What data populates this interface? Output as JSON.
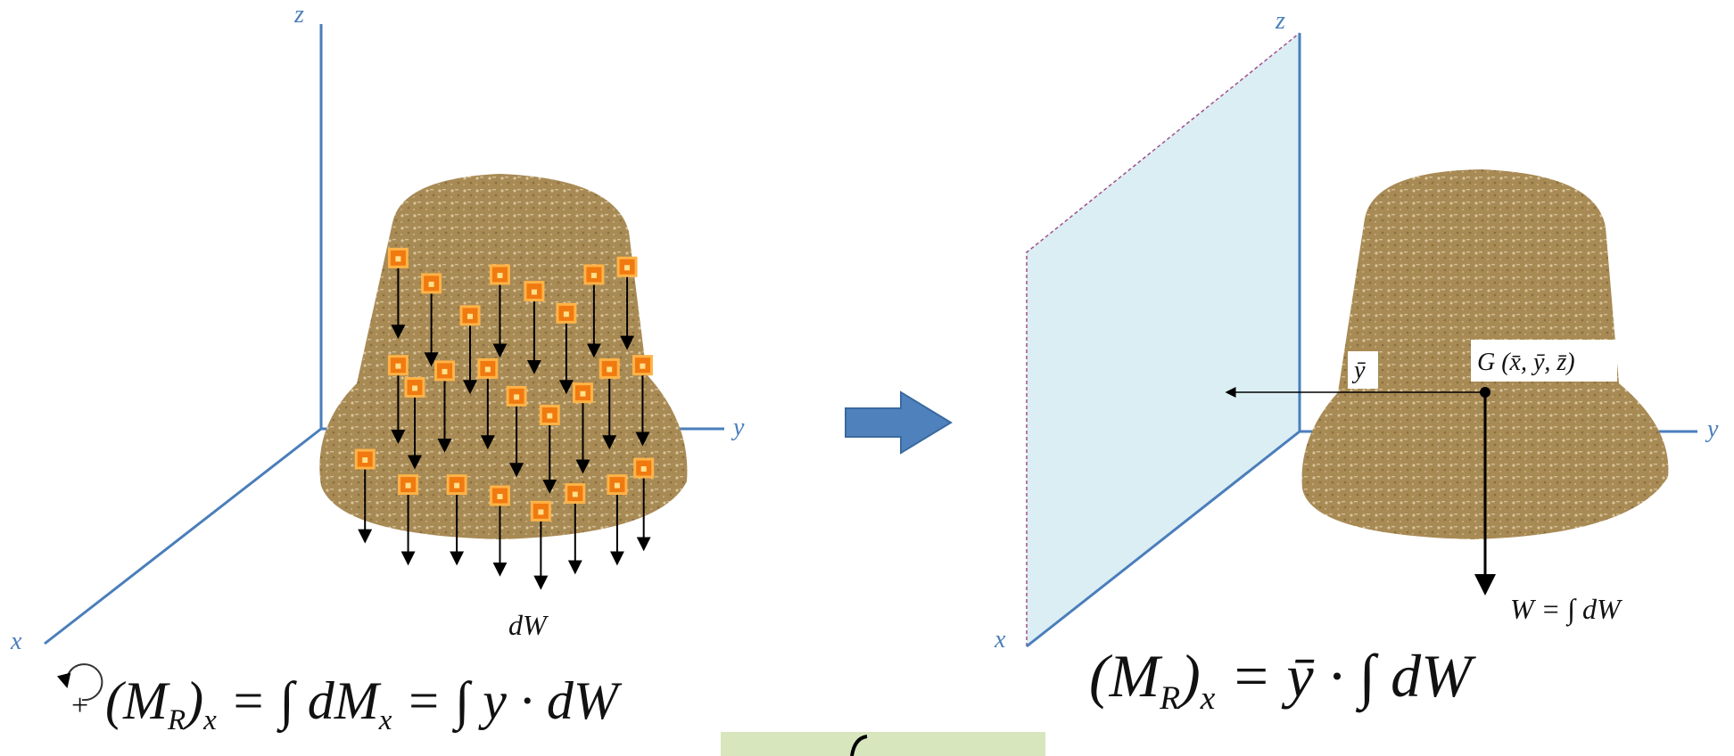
{
  "left_panel": {
    "axis_labels": {
      "x": "x",
      "y": "y",
      "z": "z"
    },
    "force_label": "dW",
    "sign": "+",
    "equation": [
      "(M",
      "R",
      ")",
      "x",
      " = ∫ dM",
      "x",
      " = ∫ y · dW"
    ]
  },
  "right_panel": {
    "axis_labels": {
      "x": "x",
      "y": "y",
      "z": "z"
    },
    "centroid_label": "G (x̄, ȳ, z̄)",
    "distance_label": "ȳ",
    "weight_label": "W = ∫ dW",
    "equation": [
      "(M",
      "R",
      ")",
      "x",
      " = ȳ · ∫ dW"
    ]
  }
}
